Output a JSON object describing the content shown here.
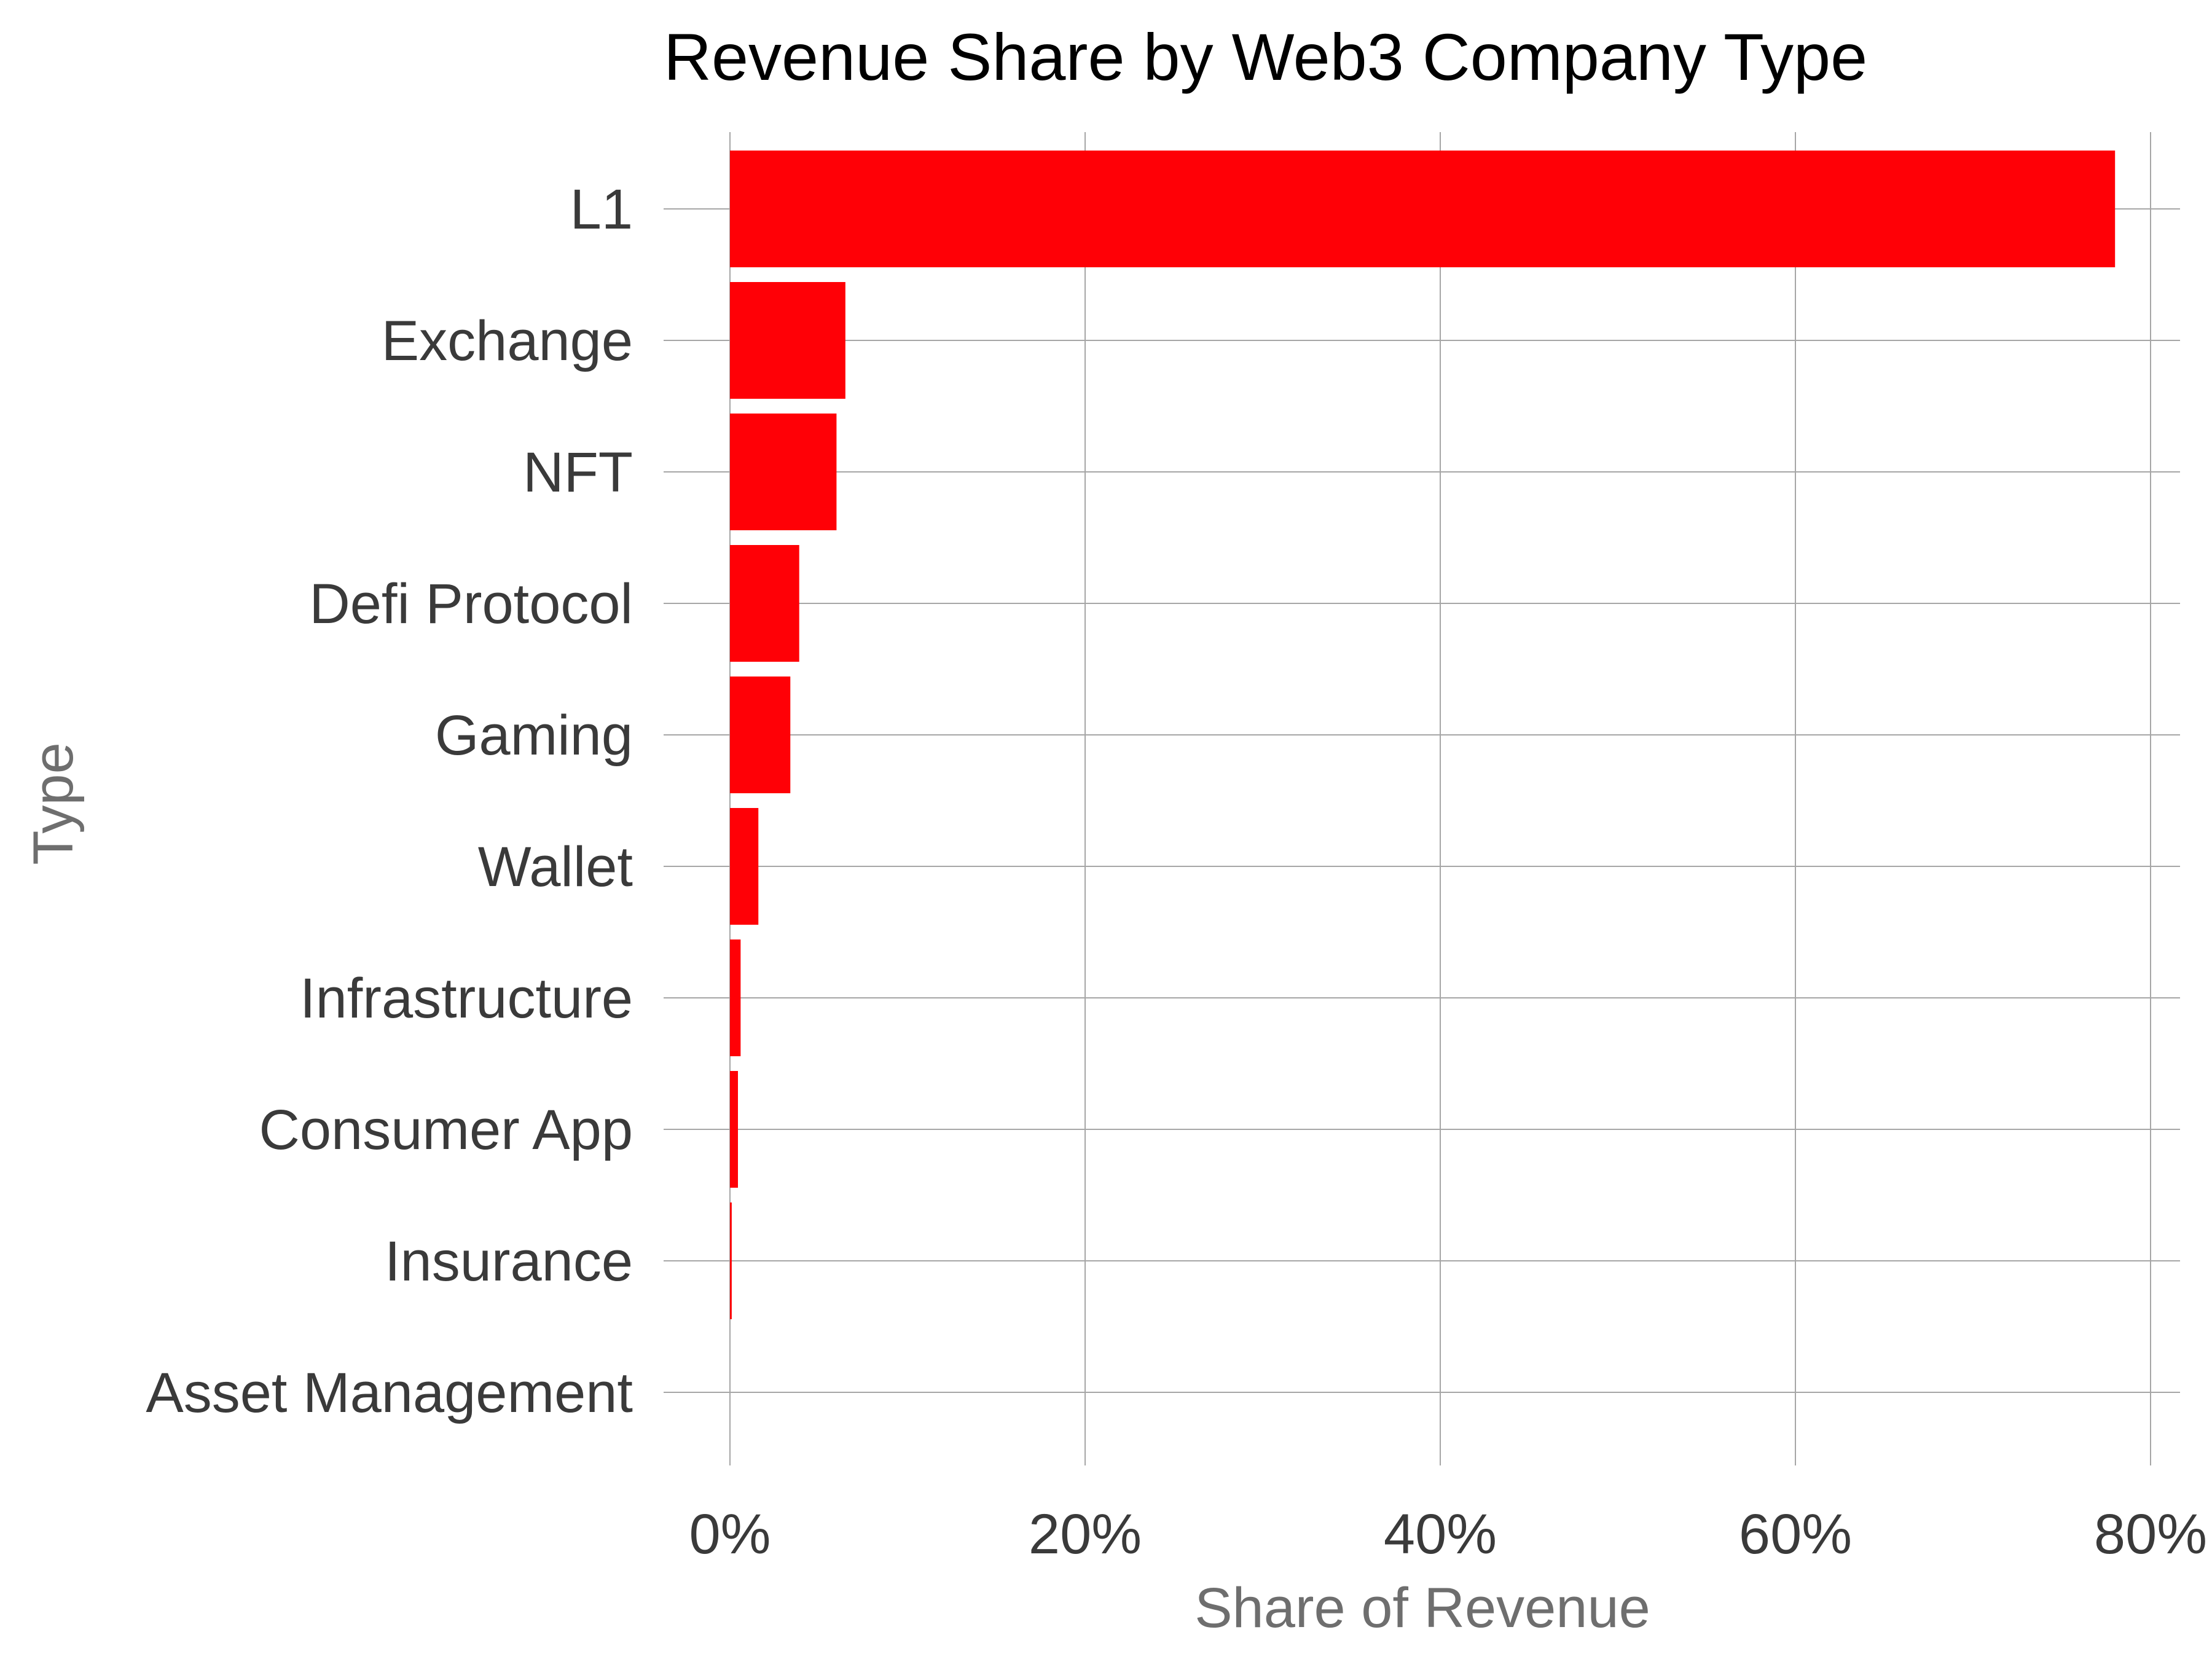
{
  "chart_data": {
    "type": "bar",
    "orientation": "horizontal",
    "title": "Revenue Share by Web3 Company Type",
    "xlabel": "Share of Revenue",
    "ylabel": "Type",
    "categories": [
      "L1",
      "Exchange",
      "NFT",
      "Defi Protocol",
      "Gaming",
      "Wallet",
      "Infrastructure",
      "Consumer App",
      "Insurance",
      "Asset Management"
    ],
    "values": [
      78.0,
      6.5,
      6.0,
      3.9,
      3.4,
      1.6,
      0.6,
      0.45,
      0.1,
      0.0
    ],
    "xlim": [
      0,
      80
    ],
    "xticks": [
      0,
      20,
      40,
      60,
      80
    ],
    "xtick_labels": [
      "0%",
      "20%",
      "40%",
      "60%",
      "80%"
    ],
    "grid": true,
    "bar_color": "#FF0006",
    "grid_color": "#A6A6A6"
  }
}
